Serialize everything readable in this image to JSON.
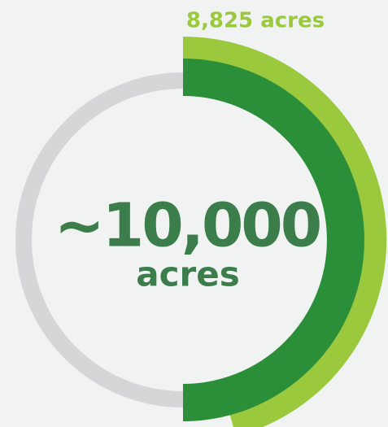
{
  "callout": "8,825 acres",
  "center": {
    "value": "~10,000",
    "unit": "acres"
  }
}
